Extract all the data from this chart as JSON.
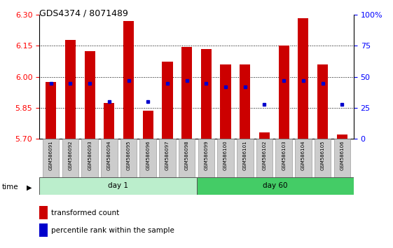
{
  "title": "GDS4374 / 8071489",
  "samples": [
    "GSM586091",
    "GSM586092",
    "GSM586093",
    "GSM586094",
    "GSM586095",
    "GSM586096",
    "GSM586097",
    "GSM586098",
    "GSM586099",
    "GSM586100",
    "GSM586101",
    "GSM586102",
    "GSM586103",
    "GSM586104",
    "GSM586105",
    "GSM586106"
  ],
  "red_values": [
    5.975,
    6.18,
    6.125,
    5.875,
    6.27,
    5.835,
    6.075,
    6.145,
    6.135,
    6.06,
    6.06,
    5.73,
    6.15,
    6.285,
    6.06,
    5.72
  ],
  "blue_percents": [
    45,
    45,
    45,
    30,
    47,
    30,
    45,
    47,
    45,
    42,
    42,
    28,
    47,
    47,
    45,
    28
  ],
  "y_min": 5.7,
  "y_max": 6.3,
  "y_ticks": [
    5.7,
    5.85,
    6.0,
    6.15,
    6.3
  ],
  "right_y_ticks": [
    0,
    25,
    50,
    75,
    100
  ],
  "right_y_labels": [
    "0",
    "25",
    "50",
    "75",
    "100%"
  ],
  "day1_samples": 8,
  "day60_samples": 8,
  "bar_color": "#CC0000",
  "dot_color": "#0000CC",
  "day1_color": "#BBEECC",
  "day60_color": "#44CC66",
  "base_value": 5.7,
  "bar_width": 0.55
}
